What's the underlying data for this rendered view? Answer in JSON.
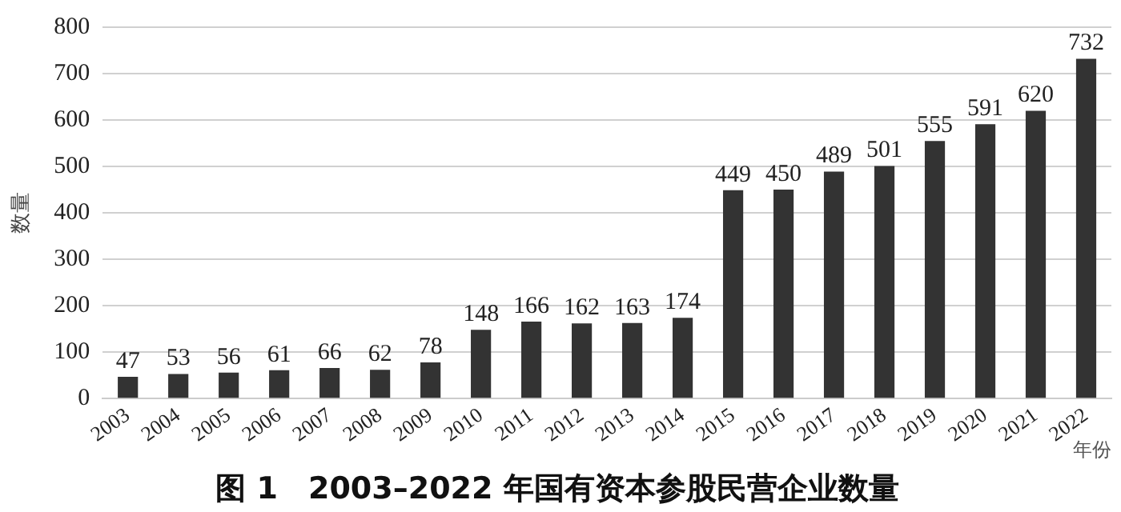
{
  "chart_data": {
    "type": "bar",
    "title": "图 1　2003–2022 年国有资本参股民营企业数量",
    "xlabel": "年份",
    "ylabel": "数量",
    "categories": [
      "2003",
      "2004",
      "2005",
      "2006",
      "2007",
      "2008",
      "2009",
      "2010",
      "2011",
      "2012",
      "2013",
      "2014",
      "2015",
      "2016",
      "2017",
      "2018",
      "2019",
      "2020",
      "2021",
      "2022"
    ],
    "values": [
      47,
      53,
      56,
      61,
      66,
      62,
      78,
      148,
      166,
      162,
      163,
      174,
      449,
      450,
      489,
      501,
      555,
      591,
      620,
      732
    ],
    "color": "#333333",
    "ylim": [
      0,
      800
    ],
    "yticks": [
      0,
      100,
      200,
      300,
      400,
      500,
      600,
      700,
      800
    ],
    "grid": "y",
    "data_labels": true
  }
}
